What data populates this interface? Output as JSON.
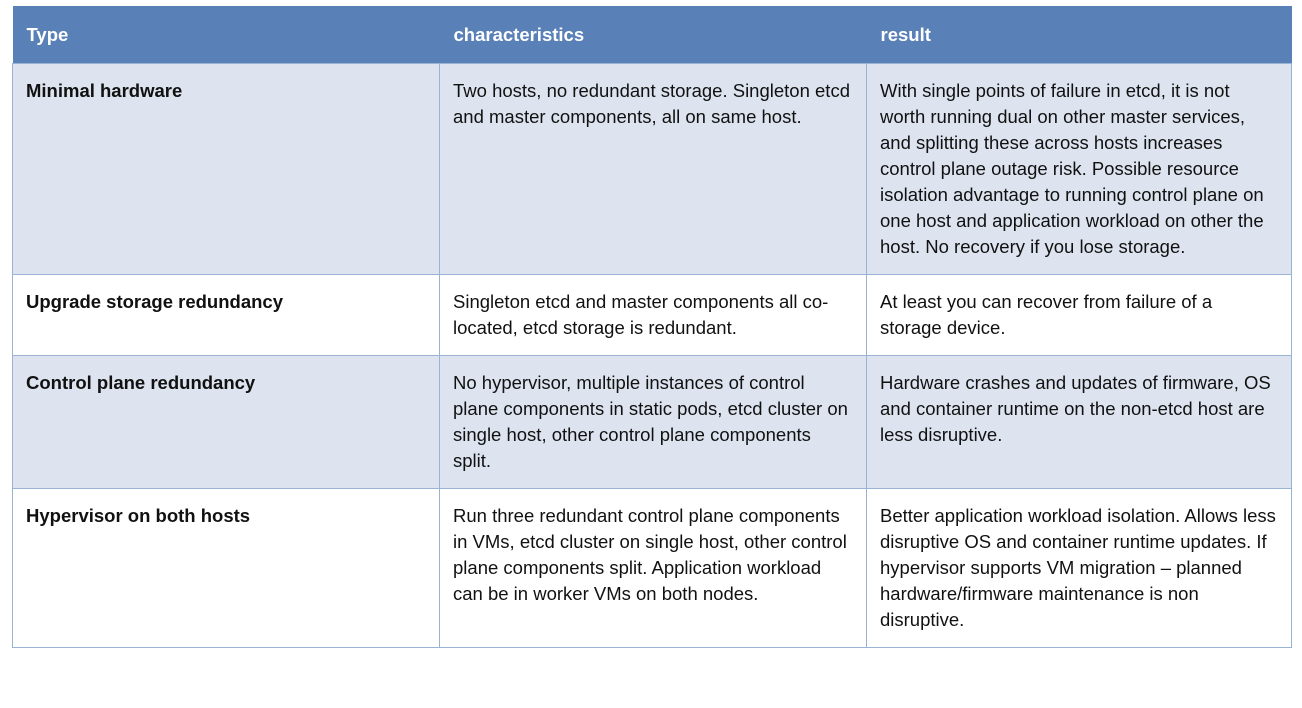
{
  "table": {
    "headers": [
      "Type",
      "characteristics",
      "result"
    ],
    "rows": [
      {
        "type": "Minimal hardware",
        "characteristics": "Two hosts, no redundant storage. Singleton etcd and master components, all on same host.",
        "result": "With single points of failure in etcd, it is not worth running dual on other master services, and splitting these across hosts increases control plane outage risk. Possible resource isolation advantage to running control plane on one host and application workload on other the host. No recovery if you lose storage."
      },
      {
        "type": "Upgrade storage redundancy",
        "characteristics": "Singleton etcd and master components all co-located, etcd storage is redundant.",
        "result": "At least you can recover from failure of a storage device."
      },
      {
        "type": "Control plane redundancy",
        "characteristics": "No hypervisor, multiple instances of control plane components in static pods, etcd cluster on single host, other control plane components split.",
        "result": "Hardware crashes and updates of firmware, OS and container runtime on the non-etcd host are less disruptive."
      },
      {
        "type": "Hypervisor on both hosts",
        "characteristics": "Run three redundant control plane components in VMs, etcd cluster on single host, other control plane components split. Application workload can be in worker VMs on both nodes.",
        "result": "Better application workload isolation. Allows less disruptive OS and container runtime updates. If hypervisor supports VM migration – planned hardware/firmware maintenance is non disruptive."
      }
    ]
  },
  "colors": {
    "header_bg": "#5a80b8",
    "alt_row_bg": "#dde4ef",
    "border": "#9ab3d5"
  }
}
